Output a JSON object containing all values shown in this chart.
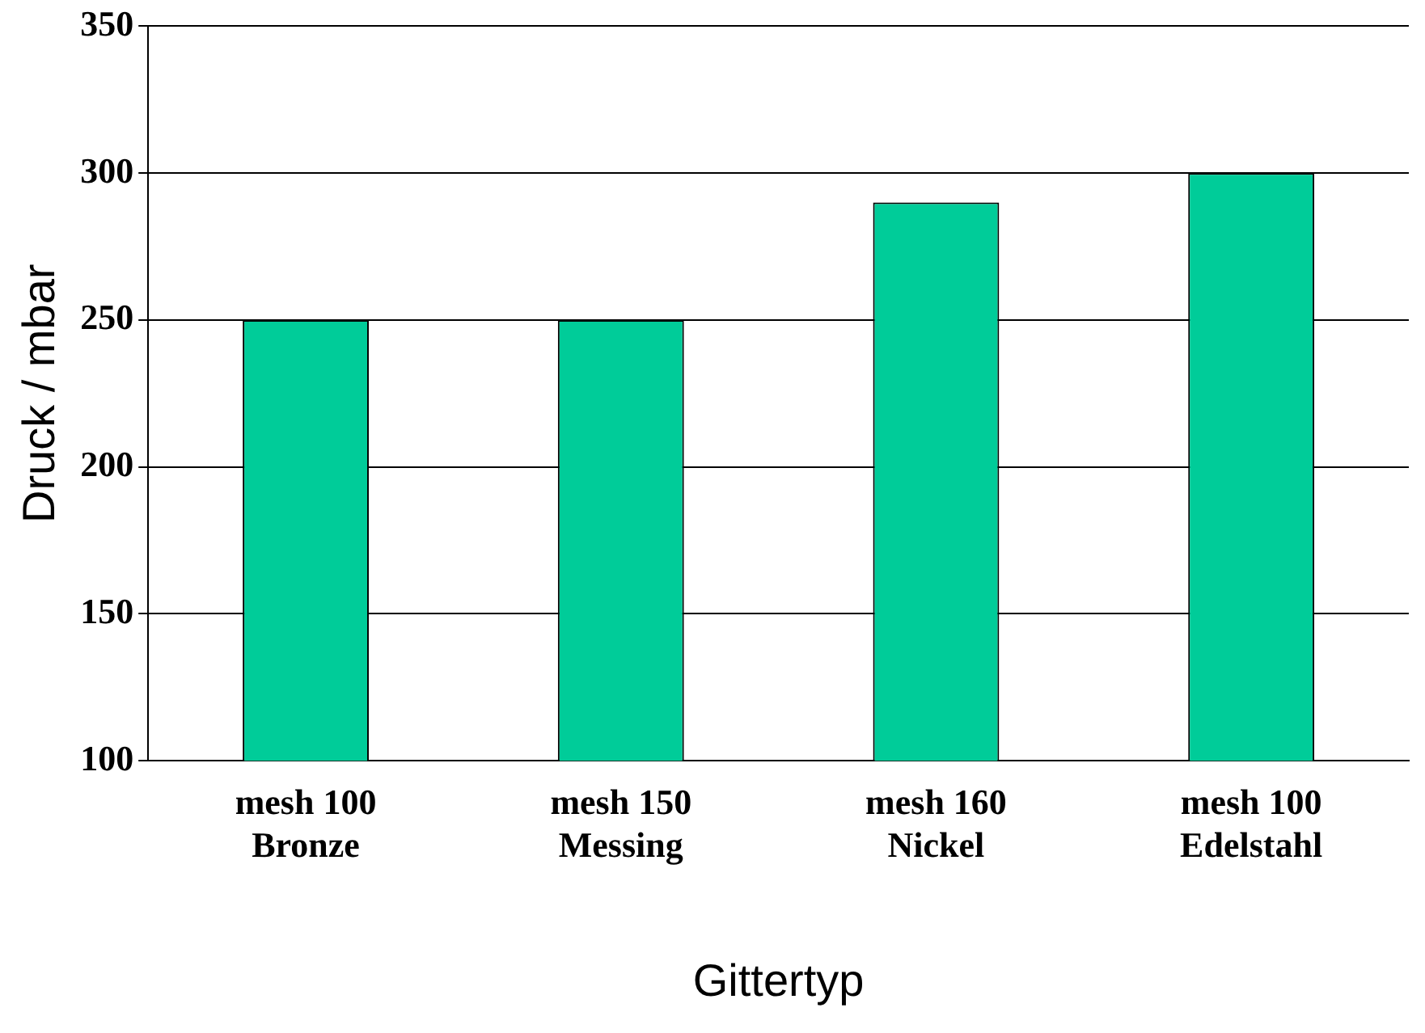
{
  "chart_data": {
    "type": "bar",
    "xlabel": "Gittertyp",
    "ylabel": "Druck / mbar",
    "categories": [
      "mesh 100\nBronze",
      "mesh 150\nMessing",
      "mesh 160\nNickel",
      "mesh 100\nEdelstahl"
    ],
    "values": [
      250,
      250,
      290,
      300
    ],
    "color": "#00cc99",
    "ylim": [
      100,
      350
    ],
    "yticks": [
      100,
      150,
      200,
      250,
      300,
      350
    ],
    "grid": "y",
    "legend": false
  }
}
